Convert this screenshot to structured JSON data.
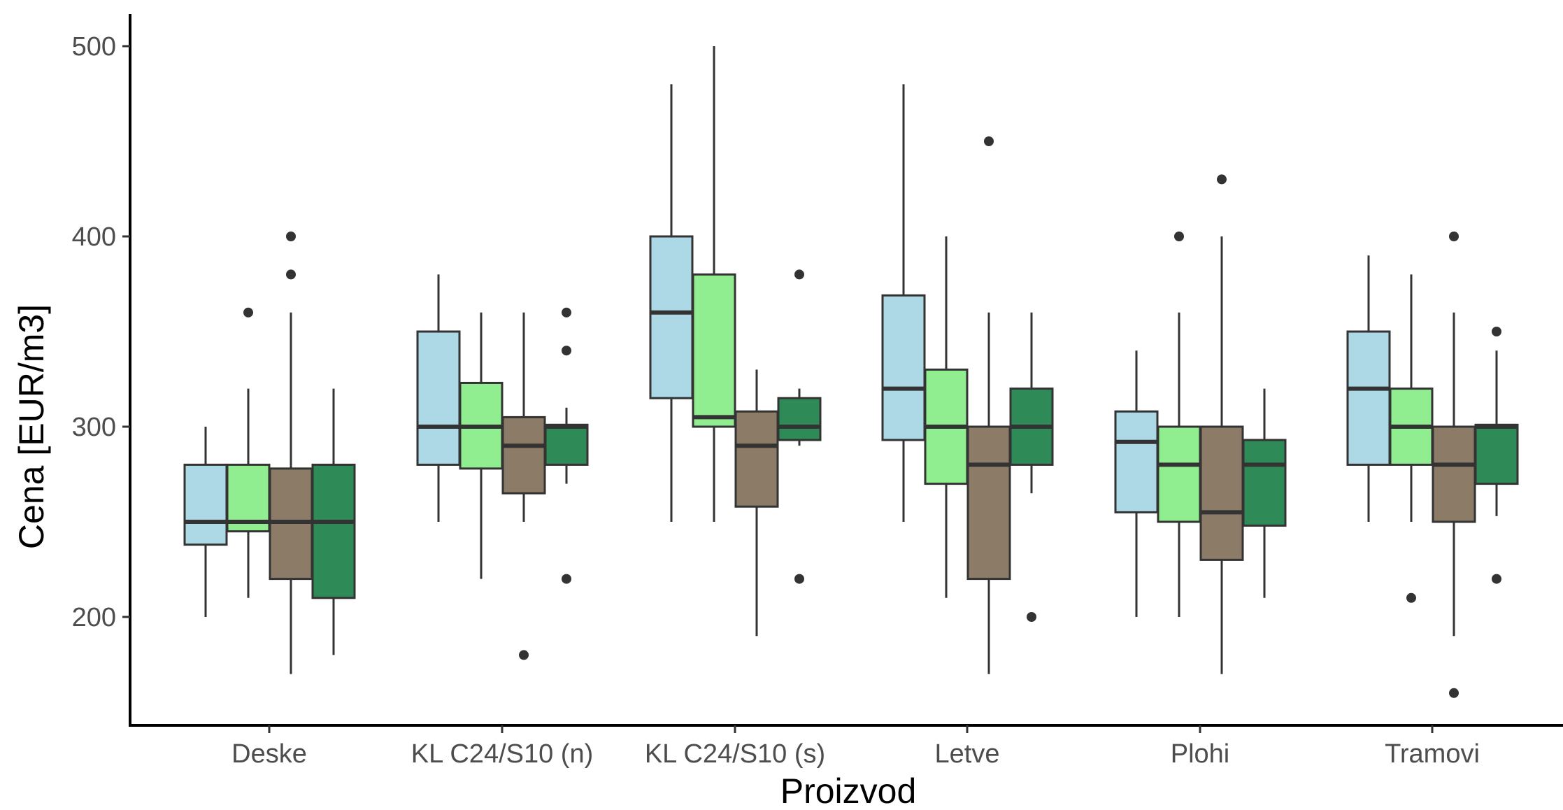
{
  "chart_data": {
    "type": "boxplot",
    "xlabel": "Proizvod",
    "ylabel": "Cena [EUR/m3]",
    "ylim": [
      145,
      510
    ],
    "yticks": [
      200,
      300,
      400,
      500
    ],
    "grid": false,
    "legend": "none",
    "categories": [
      "Deske",
      "KL C24/S10 (n)",
      "KL C24/S10 (s)",
      "Letve",
      "Plohi",
      "Tramovi"
    ],
    "series_colors": [
      "#ADD8E6",
      "#90EE90",
      "#8B7B67",
      "#2E8B57"
    ],
    "groups": [
      {
        "category": "Deske",
        "boxes": [
          {
            "min": 200,
            "q1": 238,
            "median": 250,
            "q3": 280,
            "max": 300,
            "outliers": []
          },
          {
            "min": 210,
            "q1": 245,
            "median": 250,
            "q3": 280,
            "max": 320,
            "outliers": [
              360
            ]
          },
          {
            "min": 170,
            "q1": 220,
            "median": 250,
            "q3": 278,
            "max": 360,
            "outliers": [
              380,
              400
            ]
          },
          {
            "min": 180,
            "q1": 210,
            "median": 250,
            "q3": 280,
            "max": 320,
            "outliers": []
          }
        ]
      },
      {
        "category": "KL C24/S10 (n)",
        "boxes": [
          {
            "min": 250,
            "q1": 280,
            "median": 300,
            "q3": 350,
            "max": 380,
            "outliers": []
          },
          {
            "min": 220,
            "q1": 278,
            "median": 300,
            "q3": 323,
            "max": 360,
            "outliers": []
          },
          {
            "min": 250,
            "q1": 265,
            "median": 290,
            "q3": 305,
            "max": 360,
            "outliers": [
              180
            ]
          },
          {
            "min": 270,
            "q1": 280,
            "median": 300,
            "q3": 301,
            "max": 310,
            "outliers": [
              220,
              340,
              360
            ]
          }
        ]
      },
      {
        "category": "KL C24/S10 (s)",
        "boxes": [
          {
            "min": 250,
            "q1": 315,
            "median": 360,
            "q3": 400,
            "max": 480,
            "outliers": []
          },
          {
            "min": 250,
            "q1": 300,
            "median": 305,
            "q3": 380,
            "max": 500,
            "outliers": []
          },
          {
            "min": 190,
            "q1": 258,
            "median": 290,
            "q3": 308,
            "max": 330,
            "outliers": []
          },
          {
            "min": 290,
            "q1": 293,
            "median": 300,
            "q3": 315,
            "max": 320,
            "outliers": [
              220,
              380
            ]
          }
        ]
      },
      {
        "category": "Letve",
        "boxes": [
          {
            "min": 250,
            "q1": 293,
            "median": 320,
            "q3": 369,
            "max": 480,
            "outliers": []
          },
          {
            "min": 210,
            "q1": 270,
            "median": 300,
            "q3": 330,
            "max": 400,
            "outliers": []
          },
          {
            "min": 170,
            "q1": 220,
            "median": 280,
            "q3": 300,
            "max": 360,
            "outliers": [
              450
            ]
          },
          {
            "min": 265,
            "q1": 280,
            "median": 300,
            "q3": 320,
            "max": 360,
            "outliers": [
              200
            ]
          }
        ]
      },
      {
        "category": "Plohi",
        "boxes": [
          {
            "min": 200,
            "q1": 255,
            "median": 292,
            "q3": 308,
            "max": 340,
            "outliers": []
          },
          {
            "min": 200,
            "q1": 250,
            "median": 280,
            "q3": 300,
            "max": 360,
            "outliers": [
              400
            ]
          },
          {
            "min": 170,
            "q1": 230,
            "median": 255,
            "q3": 300,
            "max": 400,
            "outliers": [
              430
            ]
          },
          {
            "min": 210,
            "q1": 248,
            "median": 280,
            "q3": 293,
            "max": 320,
            "outliers": []
          }
        ]
      },
      {
        "category": "Tramovi",
        "boxes": [
          {
            "min": 250,
            "q1": 280,
            "median": 320,
            "q3": 350,
            "max": 390,
            "outliers": []
          },
          {
            "min": 250,
            "q1": 280,
            "median": 300,
            "q3": 320,
            "max": 380,
            "outliers": [
              210
            ]
          },
          {
            "min": 190,
            "q1": 250,
            "median": 280,
            "q3": 300,
            "max": 360,
            "outliers": [
              160,
              400
            ]
          },
          {
            "min": 253,
            "q1": 270,
            "median": 300,
            "q3": 301,
            "max": 340,
            "outliers": [
              220,
              350
            ]
          }
        ]
      }
    ]
  }
}
